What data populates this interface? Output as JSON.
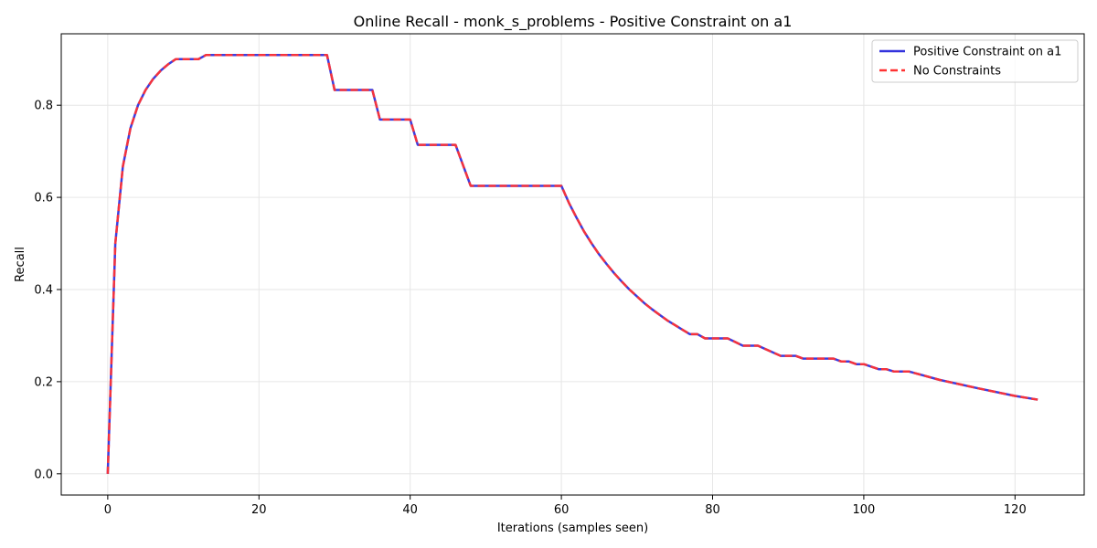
{
  "chart_data": {
    "type": "line",
    "title": "Online Recall - monk_s_problems - Positive Constraint on a1",
    "xlabel": "Iterations (samples seen)",
    "ylabel": "Recall",
    "xlim": [
      -6.15,
      129.15
    ],
    "ylim": [
      -0.046,
      0.955
    ],
    "xticks": [
      0,
      20,
      40,
      60,
      80,
      100,
      120
    ],
    "yticks": [
      0.0,
      0.2,
      0.4,
      0.6,
      0.8
    ],
    "grid": true,
    "legend_position": "top-right",
    "series": [
      {
        "name": "Positive Constraint on a1",
        "color": "#3333dd",
        "style": "solid",
        "points": [
          [
            0,
            0.0
          ],
          [
            1,
            0.5
          ],
          [
            2,
            0.667
          ],
          [
            3,
            0.75
          ],
          [
            4,
            0.8
          ],
          [
            5,
            0.833
          ],
          [
            6,
            0.857
          ],
          [
            7,
            0.875
          ],
          [
            8,
            0.889
          ],
          [
            9,
            0.9
          ],
          [
            12,
            0.9
          ],
          [
            13,
            0.909
          ],
          [
            29,
            0.909
          ],
          [
            30,
            0.833
          ],
          [
            35,
            0.833
          ],
          [
            36,
            0.769
          ],
          [
            40,
            0.769
          ],
          [
            41,
            0.714
          ],
          [
            46,
            0.714
          ],
          [
            48,
            0.625
          ],
          [
            60,
            0.625
          ],
          [
            61,
            0.588
          ],
          [
            62,
            0.556
          ],
          [
            63,
            0.526
          ],
          [
            64,
            0.5
          ],
          [
            65,
            0.476
          ],
          [
            66,
            0.455
          ],
          [
            67,
            0.435
          ],
          [
            68,
            0.417
          ],
          [
            69,
            0.4
          ],
          [
            70,
            0.385
          ],
          [
            71,
            0.37
          ],
          [
            72,
            0.357
          ],
          [
            73,
            0.345
          ],
          [
            74,
            0.333
          ],
          [
            75,
            0.323
          ],
          [
            76,
            0.313
          ],
          [
            77,
            0.303
          ],
          [
            78,
            0.303
          ],
          [
            79,
            0.294
          ],
          [
            82,
            0.294
          ],
          [
            84,
            0.278
          ],
          [
            86,
            0.278
          ],
          [
            89,
            0.256
          ],
          [
            91,
            0.256
          ],
          [
            92,
            0.25
          ],
          [
            96,
            0.25
          ],
          [
            97,
            0.244
          ],
          [
            98,
            0.244
          ],
          [
            99,
            0.238
          ],
          [
            100,
            0.238
          ],
          [
            102,
            0.227
          ],
          [
            103,
            0.227
          ],
          [
            104,
            0.222
          ],
          [
            106,
            0.222
          ],
          [
            110,
            0.204
          ],
          [
            115,
            0.186
          ],
          [
            120,
            0.169
          ],
          [
            123,
            0.161
          ]
        ]
      },
      {
        "name": "No Constraints",
        "color": "#ff3333",
        "style": "dashed",
        "points": [
          [
            0,
            0.0
          ],
          [
            1,
            0.5
          ],
          [
            2,
            0.667
          ],
          [
            3,
            0.75
          ],
          [
            4,
            0.8
          ],
          [
            5,
            0.833
          ],
          [
            6,
            0.857
          ],
          [
            7,
            0.875
          ],
          [
            8,
            0.889
          ],
          [
            9,
            0.9
          ],
          [
            12,
            0.9
          ],
          [
            13,
            0.909
          ],
          [
            29,
            0.909
          ],
          [
            30,
            0.833
          ],
          [
            35,
            0.833
          ],
          [
            36,
            0.769
          ],
          [
            40,
            0.769
          ],
          [
            41,
            0.714
          ],
          [
            46,
            0.714
          ],
          [
            48,
            0.625
          ],
          [
            60,
            0.625
          ],
          [
            61,
            0.588
          ],
          [
            62,
            0.556
          ],
          [
            63,
            0.526
          ],
          [
            64,
            0.5
          ],
          [
            65,
            0.476
          ],
          [
            66,
            0.455
          ],
          [
            67,
            0.435
          ],
          [
            68,
            0.417
          ],
          [
            69,
            0.4
          ],
          [
            70,
            0.385
          ],
          [
            71,
            0.37
          ],
          [
            72,
            0.357
          ],
          [
            73,
            0.345
          ],
          [
            74,
            0.333
          ],
          [
            75,
            0.323
          ],
          [
            76,
            0.313
          ],
          [
            77,
            0.303
          ],
          [
            78,
            0.303
          ],
          [
            79,
            0.294
          ],
          [
            82,
            0.294
          ],
          [
            84,
            0.278
          ],
          [
            86,
            0.278
          ],
          [
            89,
            0.256
          ],
          [
            91,
            0.256
          ],
          [
            92,
            0.25
          ],
          [
            96,
            0.25
          ],
          [
            97,
            0.244
          ],
          [
            98,
            0.244
          ],
          [
            99,
            0.238
          ],
          [
            100,
            0.238
          ],
          [
            102,
            0.227
          ],
          [
            103,
            0.227
          ],
          [
            104,
            0.222
          ],
          [
            106,
            0.222
          ],
          [
            110,
            0.204
          ],
          [
            115,
            0.186
          ],
          [
            120,
            0.169
          ],
          [
            123,
            0.161
          ]
        ]
      }
    ]
  }
}
